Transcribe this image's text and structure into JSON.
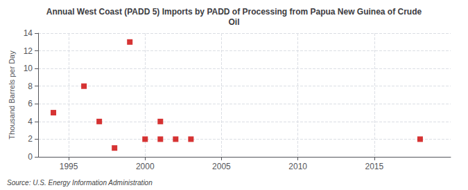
{
  "chart_data": {
    "type": "scatter",
    "title": "Annual West Coast (PADD 5) Imports by PADD of Processing from Papua New Guinea of Crude\nOil",
    "ylabel": "Thousand Barrels per Day",
    "source": "Source: U.S. Energy Information Administration",
    "x": [
      1994,
      1996,
      1997,
      1998,
      1999,
      2000,
      2001,
      2001,
      2002,
      2003,
      2018
    ],
    "values": [
      5,
      8,
      4,
      1,
      13,
      2,
      2,
      4,
      2,
      2,
      2
    ],
    "color": "#cc0000",
    "marker": "square",
    "xlim": [
      1993,
      2020
    ],
    "xticks": [
      1995,
      2000,
      2005,
      2010,
      2015
    ],
    "ylim": [
      0,
      14
    ],
    "yticks": [
      0,
      2,
      4,
      6,
      8,
      10,
      12,
      14
    ],
    "grid": true
  }
}
